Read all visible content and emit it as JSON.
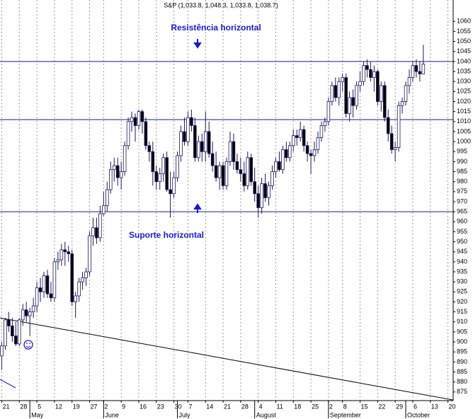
{
  "chart_data": {
    "type": "candlestick",
    "title": "S&P (1,033.8, 1,048.3, 1,033.8, 1,038.7)",
    "annotations": [
      "Resistência horizontal",
      "Suporte horizontal"
    ],
    "categories": [
      "21",
      null,
      null,
      null,
      null,
      "28",
      null,
      null,
      null,
      null,
      "5",
      null,
      null,
      null,
      null,
      "12",
      null,
      null,
      null,
      null,
      "19",
      null,
      null,
      null,
      null,
      "27",
      null,
      null,
      null,
      "2",
      null,
      null,
      null,
      null,
      "9",
      null,
      null,
      null,
      null,
      "16",
      null,
      null,
      null,
      null,
      "23",
      null,
      null,
      null,
      null,
      "30",
      null,
      null,
      null,
      "7",
      null,
      null,
      null,
      null,
      "14",
      null,
      null,
      null,
      null,
      "21",
      null,
      null,
      null,
      null,
      "28",
      null,
      null,
      null,
      null,
      "4",
      null,
      null,
      null,
      null,
      "11",
      null,
      null,
      null,
      null,
      "18",
      null,
      null,
      null,
      null,
      "25",
      null,
      null,
      null,
      null,
      "2",
      null,
      null,
      null,
      "8",
      null,
      null,
      null,
      null,
      "15",
      null,
      null,
      null,
      null,
      "22",
      null,
      null,
      null,
      null,
      "29",
      null,
      null,
      null,
      null,
      "6",
      null,
      null,
      null,
      null,
      "13",
      null,
      null,
      null,
      null,
      "20",
      null
    ],
    "months": [
      {
        "label": "May",
        "at": 8
      },
      {
        "label": "June",
        "at": 29
      },
      {
        "label": "July",
        "at": 50
      },
      {
        "label": "August",
        "at": 72
      },
      {
        "label": "September",
        "at": 93
      },
      {
        "label": "October",
        "at": 115
      }
    ],
    "open": [
      893,
      898,
      911,
      908,
      903,
      899,
      911,
      916,
      913,
      915,
      918,
      927,
      925,
      933,
      924,
      922,
      940,
      941,
      946,
      945,
      944,
      920,
      923,
      930,
      932,
      935,
      953,
      957,
      952,
      964,
      968,
      976,
      986,
      988,
      982,
      985,
      998,
      1010,
      1012,
      1008,
      1015,
      1010,
      998,
      995,
      985,
      980,
      984,
      992,
      976,
      974,
      982,
      993,
      1005,
      1000,
      1012,
      1008,
      992,
      1000,
      995,
      1005,
      994,
      988,
      982,
      988,
      978,
      990,
      1000,
      990,
      986,
      984,
      978,
      992,
      980,
      974,
      967,
      979,
      972,
      978,
      985,
      990,
      986,
      996,
      992,
      998,
      1003,
      1002,
      1006,
      998,
      994,
      993,
      996,
      1002,
      1008,
      1010,
      1020,
      1028,
      1022,
      1030,
      1032,
      1014,
      1022,
      1018,
      1028,
      1030,
      1038,
      1036,
      1032,
      1035,
      1020,
      1028,
      1012,
      1004,
      996,
      997,
      1018,
      1020,
      1028,
      1032,
      1038,
      1035,
      1033.8,
      null,
      null,
      null,
      null,
      null,
      null,
      null,
      null
    ],
    "high": [
      900,
      912,
      915,
      912,
      910,
      912,
      919,
      920,
      917,
      922,
      930,
      932,
      935,
      936,
      930,
      942,
      945,
      949,
      950,
      948,
      946,
      925,
      932,
      935,
      937,
      955,
      962,
      962,
      968,
      975,
      980,
      990,
      992,
      992,
      990,
      1000,
      1012,
      1015,
      1014,
      1016,
      1016,
      1012,
      1000,
      1000,
      988,
      987,
      994,
      995,
      985,
      985,
      995,
      1008,
      1012,
      1015,
      1016,
      1012,
      1003,
      1004,
      1015,
      1010,
      1000,
      995,
      990,
      990,
      992,
      1005,
      1004,
      994,
      992,
      990,
      995,
      994,
      987,
      978,
      982,
      984,
      980,
      988,
      992,
      995,
      998,
      1000,
      1000,
      1006,
      1006,
      1010,
      1008,
      1000,
      996,
      1000,
      1005,
      1010,
      1012,
      1022,
      1030,
      1032,
      1032,
      1034,
      1034,
      1025,
      1026,
      1030,
      1035,
      1040,
      1041,
      1040,
      1038,
      1036,
      1030,
      1030,
      1016,
      1008,
      1000,
      1020,
      1022,
      1030,
      1036,
      1040,
      1041,
      1040,
      1048.3,
      null,
      null,
      null,
      null,
      null,
      null,
      null,
      null
    ],
    "low": [
      886,
      896,
      905,
      900,
      898,
      898,
      908,
      910,
      903,
      912,
      915,
      920,
      922,
      922,
      920,
      920,
      936,
      938,
      938,
      940,
      918,
      912,
      920,
      926,
      928,
      933,
      948,
      949,
      950,
      963,
      965,
      974,
      980,
      978,
      976,
      983,
      996,
      1005,
      1000,
      1006,
      1004,
      996,
      990,
      978,
      976,
      976,
      980,
      975,
      962,
      972,
      980,
      990,
      998,
      998,
      1005,
      990,
      990,
      990,
      990,
      992,
      985,
      980,
      976,
      976,
      976,
      988,
      986,
      984,
      980,
      975,
      976,
      978,
      970,
      962,
      964,
      970,
      968,
      976,
      982,
      985,
      984,
      990,
      990,
      995,
      998,
      1000,
      995,
      990,
      984,
      990,
      994,
      1000,
      1005,
      1008,
      1018,
      1020,
      1018,
      1025,
      1012,
      1010,
      1012,
      1016,
      1025,
      1028,
      1032,
      1030,
      1025,
      1018,
      1015,
      1010,
      1000,
      994,
      990,
      995,
      1014,
      1018,
      1024,
      1030,
      1032,
      1030,
      1033.8,
      null,
      null,
      null,
      null,
      null,
      null,
      null,
      null
    ],
    "close": [
      898,
      911,
      908,
      903,
      899,
      911,
      916,
      913,
      915,
      918,
      927,
      925,
      933,
      924,
      922,
      940,
      941,
      946,
      945,
      944,
      920,
      923,
      930,
      932,
      935,
      953,
      957,
      952,
      964,
      968,
      976,
      986,
      988,
      982,
      985,
      998,
      1010,
      1012,
      1008,
      1015,
      1010,
      998,
      995,
      985,
      980,
      984,
      992,
      976,
      974,
      982,
      993,
      1005,
      1000,
      1012,
      1008,
      992,
      1000,
      995,
      1005,
      994,
      988,
      982,
      988,
      978,
      990,
      1000,
      990,
      986,
      984,
      978,
      992,
      980,
      974,
      967,
      979,
      972,
      978,
      985,
      990,
      986,
      996,
      992,
      998,
      1003,
      1002,
      1006,
      998,
      994,
      993,
      996,
      1002,
      1008,
      1010,
      1020,
      1028,
      1022,
      1030,
      1032,
      1014,
      1022,
      1018,
      1028,
      1030,
      1038,
      1036,
      1032,
      1035,
      1020,
      1028,
      1012,
      1004,
      996,
      997,
      1018,
      1020,
      1028,
      1032,
      1038,
      1035,
      1033.8,
      1038.7,
      null,
      null,
      null,
      null,
      null,
      null,
      null,
      null
    ],
    "up_color": "#ffffff",
    "down_color": "#000000",
    "color": "#1a1a60",
    "hlines": [
      1040,
      1011,
      965
    ],
    "hline_color": "#1a1a90",
    "trendline": [
      912,
      871
    ],
    "trendline_color": "#000000",
    "ylim": [
      870.7,
      1070.7
    ],
    "yticks": [
      875,
      880,
      885,
      890,
      895,
      900,
      905,
      910,
      915,
      920,
      925,
      930,
      935,
      940,
      945,
      950,
      955,
      960,
      965,
      970,
      975,
      980,
      985,
      990,
      995,
      1000,
      1005,
      1010,
      1015,
      1020,
      1025,
      1030,
      1035,
      1040,
      1045,
      1050,
      1055,
      1060
    ],
    "grid": true
  }
}
